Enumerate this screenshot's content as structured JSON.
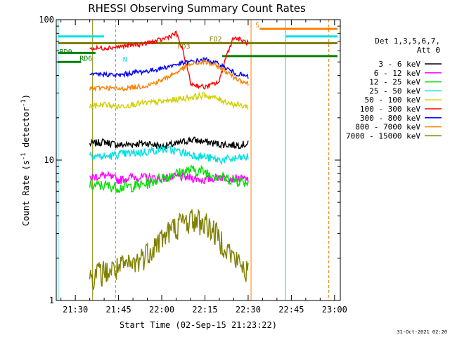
{
  "chart_data": {
    "type": "line",
    "title": "RHESSI Observing Summary Count Rates",
    "xlabel": "Start Time (02-Sep-15 21:23:22)",
    "ylabel": "Count Rate (s",
    "ylabel_sup": "-1",
    "ylabel_tail": " detector",
    "ylabel_close": ")",
    "y_scale": "log",
    "ylim": [
      1,
      100
    ],
    "xlim": [
      "21:23:22",
      "23:02:00"
    ],
    "x_ticks": [
      "21:30",
      "21:45",
      "22:00",
      "22:15",
      "22:30",
      "22:45",
      "23:00"
    ],
    "y_ticks": [
      "1",
      "10",
      "100"
    ],
    "legend": {
      "placement": "right",
      "header_line1": "Det 1,3,5,6,7,",
      "header_line2": "Att 0"
    },
    "series": [
      {
        "name": "3 - 6 keV",
        "color": "#000000",
        "x": [
          "21:35",
          "21:40",
          "21:45",
          "21:50",
          "21:55",
          "22:00",
          "22:05",
          "22:10",
          "22:15",
          "22:20",
          "22:25",
          "22:30"
        ],
        "y": [
          13,
          13.5,
          12.8,
          13,
          13.2,
          12.5,
          13,
          14,
          13.5,
          13,
          12.8,
          13
        ]
      },
      {
        "name": "6 - 12 keV",
        "color": "#ff00ff",
        "x": [
          "21:35",
          "21:40",
          "21:45",
          "21:50",
          "21:55",
          "22:00",
          "22:05",
          "22:10",
          "22:15",
          "22:20",
          "22:25",
          "22:30"
        ],
        "y": [
          7.5,
          7.8,
          7.2,
          7.6,
          7.5,
          7.4,
          7.6,
          7.5,
          7.2,
          7.6,
          7.4,
          7.3
        ]
      },
      {
        "name": "12 - 25 keV",
        "color": "#00e000",
        "x": [
          "21:35",
          "21:40",
          "21:45",
          "21:50",
          "21:55",
          "22:00",
          "22:05",
          "22:10",
          "22:15",
          "22:20",
          "22:25",
          "22:30"
        ],
        "y": [
          6.5,
          6.6,
          6.4,
          6.5,
          6.8,
          7.5,
          8.0,
          8.5,
          8.3,
          7.6,
          7.2,
          7.0
        ]
      },
      {
        "name": "25 - 50 keV",
        "color": "#00e0e0",
        "x": [
          "21:35",
          "21:40",
          "21:45",
          "21:50",
          "21:55",
          "22:00",
          "22:05",
          "22:10",
          "22:15",
          "22:20",
          "22:25",
          "22:30"
        ],
        "y": [
          11,
          10.5,
          11,
          11.2,
          11.5,
          12,
          11.6,
          11,
          10.5,
          10,
          10.2,
          10.5
        ]
      },
      {
        "name": "50 - 100 keV",
        "color": "#d0d000",
        "x": [
          "21:35",
          "21:40",
          "21:45",
          "21:50",
          "21:55",
          "22:00",
          "22:05",
          "22:10",
          "22:15",
          "22:20",
          "22:25",
          "22:30"
        ],
        "y": [
          24,
          25,
          24,
          25,
          25.5,
          26,
          27,
          28,
          29,
          27,
          25,
          24
        ]
      },
      {
        "name": "100 - 300 keV",
        "color": "#ff0000",
        "x": [
          "21:35",
          "21:40",
          "21:45",
          "21:50",
          "21:55",
          "22:00",
          "22:05",
          "22:10",
          "22:15",
          "22:20",
          "22:25",
          "22:30"
        ],
        "y": [
          62,
          63,
          64,
          66,
          68,
          72,
          80,
          35,
          33,
          36,
          75,
          68
        ]
      },
      {
        "name": "300 - 800 keV",
        "color": "#0000ff",
        "x": [
          "21:35",
          "21:40",
          "21:45",
          "21:50",
          "21:55",
          "22:00",
          "22:05",
          "22:10",
          "22:15",
          "22:20",
          "22:25",
          "22:30"
        ],
        "y": [
          40,
          41,
          40,
          42,
          43,
          45,
          48,
          50,
          52,
          48,
          42,
          39
        ]
      },
      {
        "name": "800 - 7000 keV",
        "color": "#ff8000",
        "x": [
          "21:35",
          "21:40",
          "21:45",
          "21:50",
          "21:55",
          "22:00",
          "22:05",
          "22:10",
          "22:15",
          "22:20",
          "22:25",
          "22:30"
        ],
        "y": [
          32,
          33,
          32,
          33,
          34,
          37,
          42,
          48,
          50,
          46,
          39,
          35
        ]
      },
      {
        "name": "7000 - 15000 keV",
        "color": "#808000",
        "x": [
          "21:35",
          "21:40",
          "21:45",
          "21:50",
          "21:55",
          "22:00",
          "22:05",
          "22:10",
          "22:15",
          "22:20",
          "22:25",
          "22:30"
        ],
        "y": [
          1.5,
          1.6,
          1.7,
          1.8,
          2.2,
          2.8,
          3.4,
          3.8,
          3.6,
          2.8,
          2.0,
          1.6
        ]
      }
    ],
    "annotations": [
      {
        "label": "N",
        "color": "#00e0e0"
      },
      {
        "label": "S",
        "color": "#ff8000"
      },
      {
        "label": "RD0",
        "color": "#008000"
      },
      {
        "label": "RD6",
        "color": "#008000"
      },
      {
        "label": "FD2",
        "color": "#808000"
      },
      {
        "label": "FD3",
        "color": "#808000"
      }
    ],
    "timestamp": "31-Oct-2021 02:20"
  }
}
